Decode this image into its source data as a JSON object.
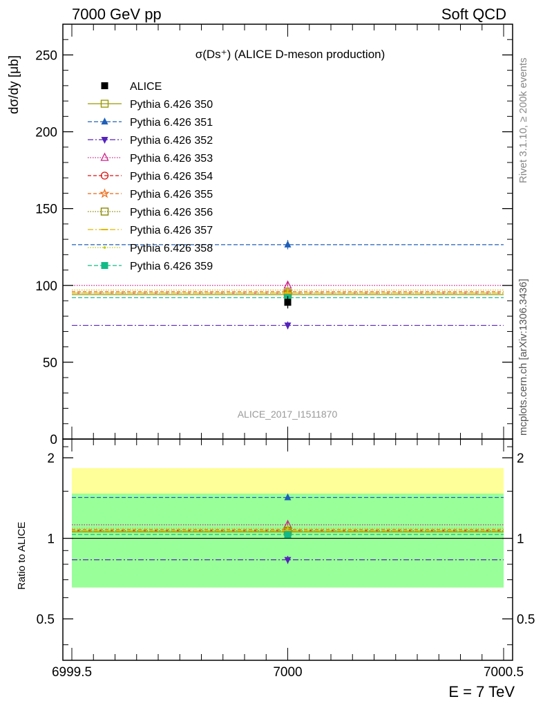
{
  "header": {
    "left": "7000 GeV pp",
    "right": "Soft QCD"
  },
  "side_labels": {
    "rivet": "Rivet 3.1.10, ≥ 200k events",
    "mcplots": "mcplots.cern.ch [arXiv:1306.3436]"
  },
  "watermark": "ALICE_2017_I1511870",
  "chart_data": {
    "type": "scatter",
    "title": "σ(Ds⁺) (ALICE D-meson production)",
    "ylabel": "dσ/dy [μb]",
    "ratio_ylabel": "Ratio to ALICE",
    "xlabel": "E = 7 TeV",
    "xlim": [
      6999.5,
      7000.5
    ],
    "x_ticks": [
      "6999.5",
      "7000",
      "7000.5"
    ],
    "main": {
      "ylim": [
        0,
        270
      ],
      "y_ticks": [
        0,
        50,
        100,
        150,
        200,
        250
      ]
    },
    "ratio": {
      "ylim": [
        0.35,
        2.35
      ],
      "y_ticks": [
        0.5,
        1,
        2
      ],
      "tick_labels": [
        "0.5",
        "1",
        "2"
      ],
      "bands": [
        {
          "name": "outer",
          "color": "#ffff99",
          "low": 0.655,
          "high": 1.83
        },
        {
          "name": "inner",
          "color": "#99ff99",
          "low": 0.655,
          "high": 1.47
        }
      ]
    },
    "data": {
      "name": "ALICE",
      "x": 7000,
      "y": 89,
      "err": 4,
      "color": "#000000",
      "marker": "square-filled"
    },
    "series": [
      {
        "name": "Pythia 6.426 350",
        "y": 94,
        "err": 2.5,
        "color": "#999900",
        "dash": "",
        "marker": "square-open"
      },
      {
        "name": "Pythia 6.426 351",
        "y": 126.5,
        "err": 3.0,
        "color": "#1f5fb8",
        "dash": "6,3",
        "marker": "triangle-up-filled"
      },
      {
        "name": "Pythia 6.426 352",
        "y": 74,
        "err": 2.5,
        "color": "#5522bb",
        "dash": "8,3,2,3",
        "marker": "triangle-down-filled"
      },
      {
        "name": "Pythia 6.426 353",
        "y": 100,
        "err": 2.5,
        "color": "#cc2288",
        "dash": "1.5,2",
        "marker": "triangle-up-open"
      },
      {
        "name": "Pythia 6.426 354",
        "y": 95,
        "err": 2.5,
        "color": "#dd1111",
        "dash": "5,3",
        "marker": "circle-open"
      },
      {
        "name": "Pythia 6.426 355",
        "y": 96,
        "err": 2.5,
        "color": "#ee6611",
        "dash": "5,3",
        "marker": "star-open"
      },
      {
        "name": "Pythia 6.426 356",
        "y": 95,
        "err": 2.5,
        "color": "#888800",
        "dash": "1.5,2",
        "marker": "square-open"
      },
      {
        "name": "Pythia 6.426 357",
        "y": 95,
        "err": 2.5,
        "color": "#ddbb00",
        "dash": "8,3,2,3",
        "marker": "dash"
      },
      {
        "name": "Pythia 6.426 358",
        "y": 97,
        "err": 2.5,
        "color": "#bbcc00",
        "dash": "1.5,2",
        "marker": "dot"
      },
      {
        "name": "Pythia 6.426 359",
        "y": 92,
        "err": 2.5,
        "color": "#11bb88",
        "dash": "6,3",
        "marker": "square-filled"
      }
    ]
  }
}
